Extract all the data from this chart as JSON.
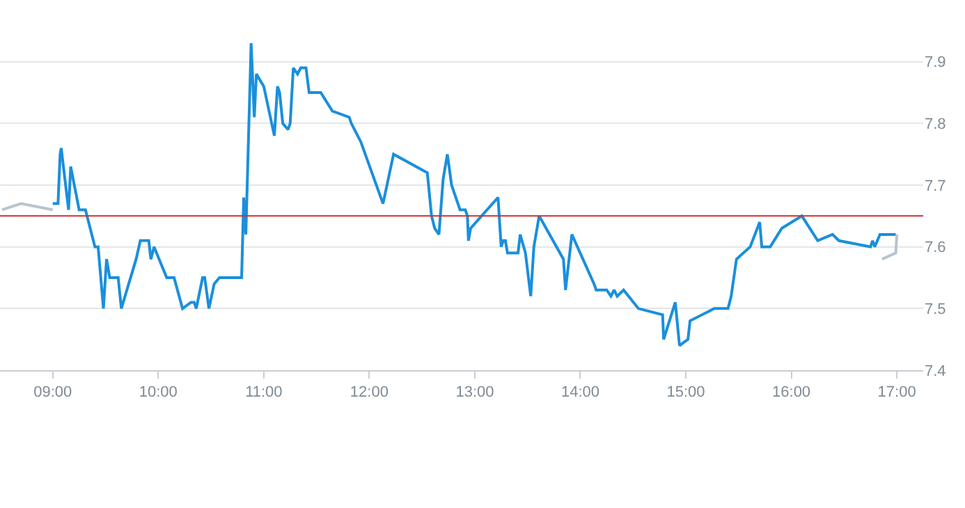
{
  "chart_data": {
    "type": "line",
    "xlim": [
      8.5,
      17.25
    ],
    "xticks": [
      {
        "value": 9,
        "label": "09:00"
      },
      {
        "value": 10,
        "label": "10:00"
      },
      {
        "value": 11,
        "label": "11:00"
      },
      {
        "value": 12,
        "label": "12:00"
      },
      {
        "value": 13,
        "label": "13:00"
      },
      {
        "value": 14,
        "label": "14:00"
      },
      {
        "value": 15,
        "label": "15:00"
      },
      {
        "value": 16,
        "label": "16:00"
      },
      {
        "value": 17,
        "label": "17:00"
      }
    ],
    "ylim": [
      7.4,
      8.0
    ],
    "yticks": [
      7.4,
      7.5,
      7.6,
      7.7,
      7.8,
      7.9
    ],
    "grid": "y",
    "marker": "none",
    "ref_lines": [
      {
        "axis": "y",
        "value": 7.65,
        "color": "#d62c2c"
      }
    ],
    "series": [
      {
        "color": "#b8c4ce",
        "x": [
          8.52,
          8.7,
          9.0
        ],
        "values": [
          7.66,
          7.67,
          7.66
        ]
      },
      {
        "color": "#1a8fdc",
        "x": [
          9.0,
          9.05,
          9.07,
          9.08,
          9.15,
          9.17,
          9.25,
          9.31,
          9.4,
          9.43,
          9.48,
          9.51,
          9.54,
          9.62,
          9.65,
          9.79,
          9.83,
          9.91,
          9.93,
          9.96,
          10.08,
          10.15,
          10.23,
          10.31,
          10.34,
          10.36,
          10.42,
          10.44,
          10.48,
          10.53,
          10.58,
          10.79,
          10.81,
          10.83,
          10.88,
          10.91,
          10.93,
          11.0,
          11.1,
          11.13,
          11.15,
          11.18,
          11.23,
          11.25,
          11.28,
          11.32,
          11.35,
          11.4,
          11.43,
          11.54,
          11.65,
          11.81,
          11.83,
          11.92,
          12.13,
          12.23,
          12.55,
          12.59,
          12.62,
          12.66,
          12.7,
          12.74,
          12.78,
          12.86,
          12.91,
          12.93,
          12.94,
          12.96,
          13.22,
          13.25,
          13.27,
          13.29,
          13.31,
          13.41,
          13.43,
          13.48,
          13.53,
          13.56,
          13.61,
          13.84,
          13.86,
          13.92,
          14.13,
          14.15,
          14.25,
          14.29,
          14.32,
          14.35,
          14.41,
          14.55,
          14.78,
          14.79,
          14.9,
          14.94,
          15.02,
          15.04,
          15.27,
          15.4,
          15.43,
          15.48,
          15.61,
          15.7,
          15.72,
          15.8,
          15.91,
          16.1,
          16.25,
          16.39,
          16.45,
          16.75,
          16.77,
          16.79,
          16.84,
          16.99
        ],
        "values": [
          7.67,
          7.67,
          7.75,
          7.76,
          7.66,
          7.73,
          7.66,
          7.66,
          7.6,
          7.6,
          7.5,
          7.58,
          7.55,
          7.55,
          7.5,
          7.58,
          7.61,
          7.61,
          7.58,
          7.6,
          7.55,
          7.55,
          7.5,
          7.51,
          7.51,
          7.5,
          7.55,
          7.55,
          7.5,
          7.54,
          7.55,
          7.55,
          7.68,
          7.62,
          7.93,
          7.81,
          7.88,
          7.86,
          7.78,
          7.86,
          7.85,
          7.8,
          7.79,
          7.8,
          7.89,
          7.88,
          7.89,
          7.89,
          7.85,
          7.85,
          7.82,
          7.81,
          7.8,
          7.77,
          7.67,
          7.75,
          7.72,
          7.65,
          7.63,
          7.62,
          7.71,
          7.75,
          7.7,
          7.66,
          7.66,
          7.65,
          7.61,
          7.63,
          7.68,
          7.6,
          7.61,
          7.61,
          7.59,
          7.59,
          7.62,
          7.59,
          7.52,
          7.6,
          7.65,
          7.58,
          7.53,
          7.62,
          7.54,
          7.53,
          7.53,
          7.52,
          7.53,
          7.52,
          7.53,
          7.5,
          7.49,
          7.45,
          7.51,
          7.44,
          7.45,
          7.48,
          7.5,
          7.5,
          7.52,
          7.58,
          7.6,
          7.64,
          7.6,
          7.6,
          7.63,
          7.65,
          7.61,
          7.62,
          7.61,
          7.6,
          7.61,
          7.6,
          7.62,
          7.62
        ]
      },
      {
        "color": "#b8c4ce",
        "x": [
          16.86,
          16.99,
          17.0
        ],
        "values": [
          7.58,
          7.59,
          7.62
        ]
      }
    ]
  }
}
